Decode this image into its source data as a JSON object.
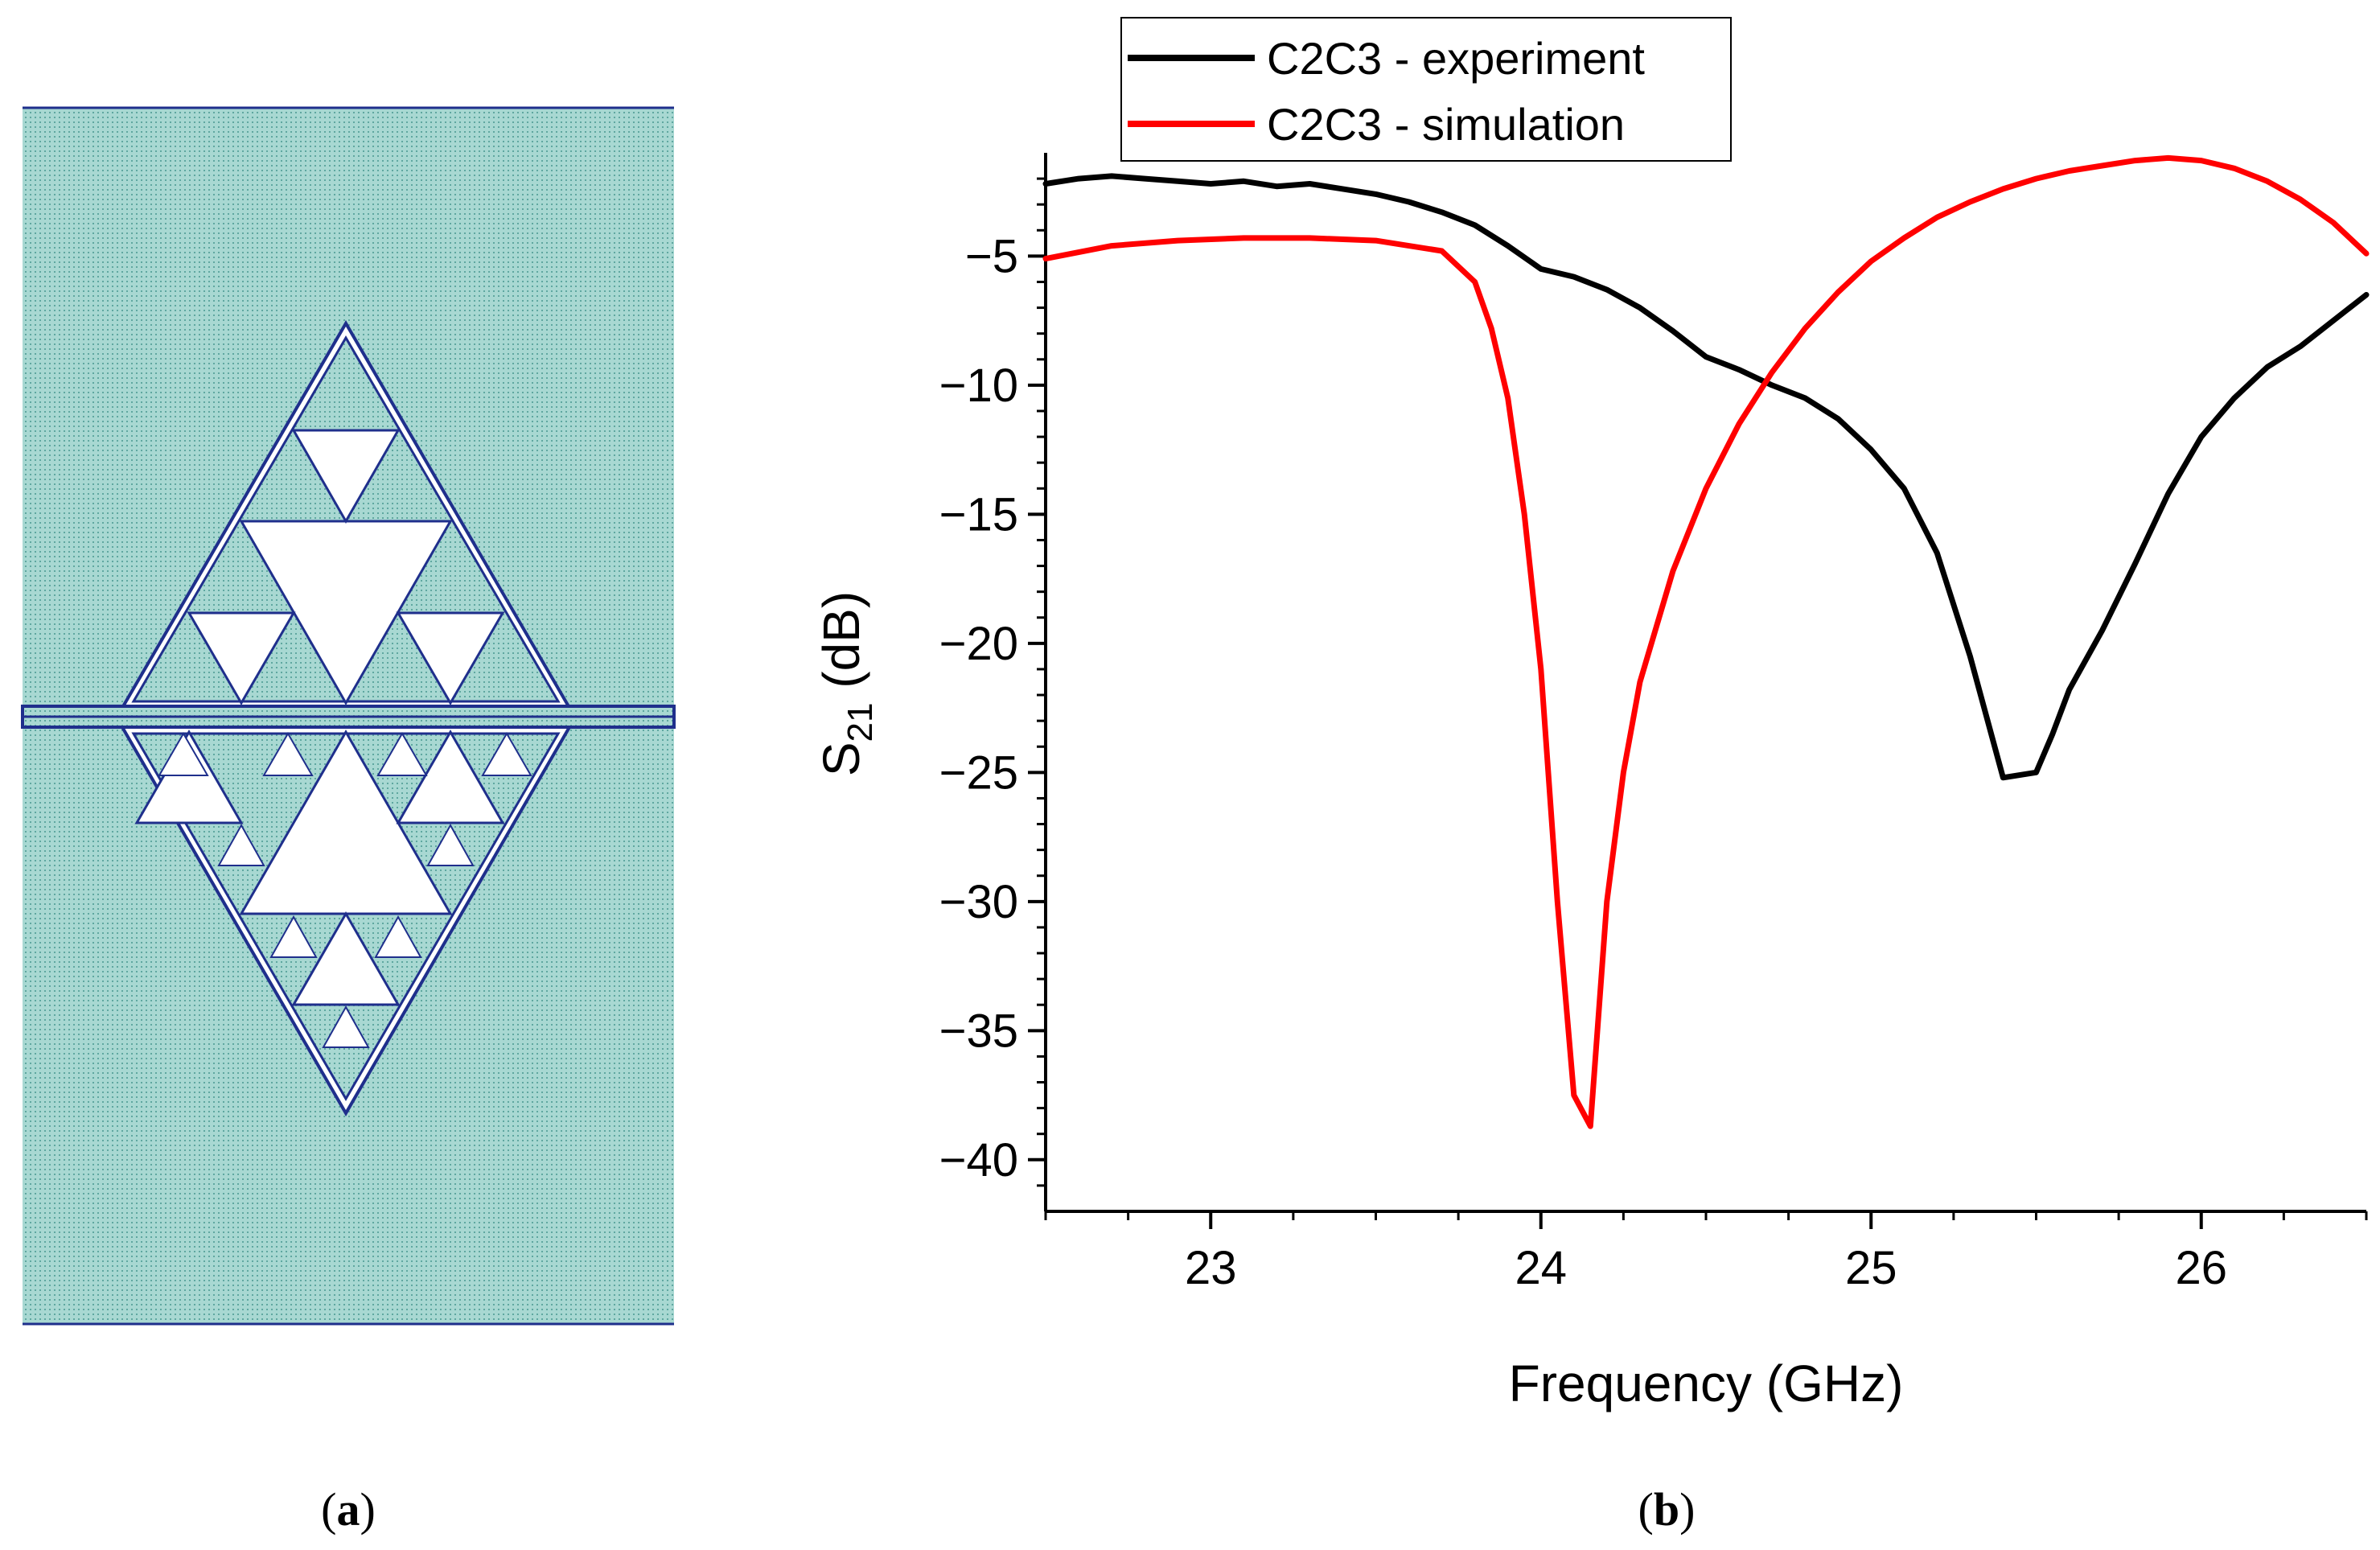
{
  "panels": {
    "a": {
      "label_open": "(",
      "letter": "a",
      "label_close": ")"
    },
    "b": {
      "label_open": "(",
      "letter": "b",
      "label_close": ")"
    }
  },
  "colors": {
    "substrate": "#a8d8d2",
    "dot": "#5fa7a0",
    "metal_line": "#1f2f8c",
    "experiment": "#000000",
    "simulation": "#ff0000"
  },
  "chart_data": {
    "type": "line",
    "title": "",
    "xlabel": "Frequency (GHz)",
    "ylabel_main": "S",
    "ylabel_sub": "21",
    "ylabel_unit": " (dB)",
    "xlim": [
      22.5,
      26.5
    ],
    "ylim": [
      -42,
      -1
    ],
    "xticks": [
      23,
      24,
      25,
      26
    ],
    "yticks": [
      -5,
      -10,
      -15,
      -20,
      -25,
      -30,
      -35,
      -40
    ],
    "xtick_labels": [
      "23",
      "24",
      "25",
      "26"
    ],
    "ytick_labels": [
      "−5",
      "−10",
      "−15",
      "−20",
      "−25",
      "−30",
      "−35",
      "−40"
    ],
    "legend_position": "top",
    "series": [
      {
        "name": "C2C3 - experiment",
        "color": "#000000",
        "x": [
          22.5,
          22.6,
          22.7,
          22.8,
          22.9,
          23.0,
          23.1,
          23.2,
          23.3,
          23.4,
          23.5,
          23.6,
          23.7,
          23.8,
          23.9,
          24.0,
          24.1,
          24.2,
          24.3,
          24.4,
          24.5,
          24.6,
          24.7,
          24.8,
          24.9,
          25.0,
          25.1,
          25.2,
          25.3,
          25.4,
          25.5,
          25.55,
          25.6,
          25.7,
          25.8,
          25.9,
          26.0,
          26.1,
          26.2,
          26.3,
          26.4,
          26.5
        ],
        "y": [
          -2.2,
          -2.0,
          -1.9,
          -2.0,
          -2.1,
          -2.2,
          -2.1,
          -2.3,
          -2.2,
          -2.4,
          -2.6,
          -2.9,
          -3.3,
          -3.8,
          -4.6,
          -5.5,
          -5.8,
          -6.3,
          -7.0,
          -7.9,
          -8.9,
          -9.4,
          -10.0,
          -10.5,
          -11.3,
          -12.5,
          -14.0,
          -16.5,
          -20.5,
          -25.2,
          -25.0,
          -23.5,
          -21.8,
          -19.5,
          -16.9,
          -14.2,
          -12.0,
          -10.5,
          -9.3,
          -8.5,
          -7.5,
          -6.5
        ]
      },
      {
        "name": "C2C3 - simulation",
        "color": "#ff0000",
        "x": [
          22.5,
          22.7,
          22.9,
          23.1,
          23.3,
          23.5,
          23.7,
          23.8,
          23.85,
          23.9,
          23.95,
          24.0,
          24.05,
          24.1,
          24.15,
          24.2,
          24.25,
          24.3,
          24.4,
          24.5,
          24.6,
          24.7,
          24.8,
          24.9,
          25.0,
          25.1,
          25.2,
          25.3,
          25.4,
          25.5,
          25.6,
          25.7,
          25.8,
          25.9,
          26.0,
          26.1,
          26.2,
          26.3,
          26.4,
          26.5
        ],
        "y": [
          -5.1,
          -4.6,
          -4.4,
          -4.3,
          -4.3,
          -4.4,
          -4.8,
          -6.0,
          -7.8,
          -10.5,
          -15.0,
          -21.0,
          -30.0,
          -37.5,
          -38.7,
          -30.0,
          -25.0,
          -21.5,
          -17.2,
          -14.0,
          -11.5,
          -9.5,
          -7.8,
          -6.4,
          -5.2,
          -4.3,
          -3.5,
          -2.9,
          -2.4,
          -2.0,
          -1.7,
          -1.5,
          -1.3,
          -1.2,
          -1.3,
          -1.6,
          -2.1,
          -2.8,
          -3.7,
          -4.9
        ]
      }
    ]
  }
}
